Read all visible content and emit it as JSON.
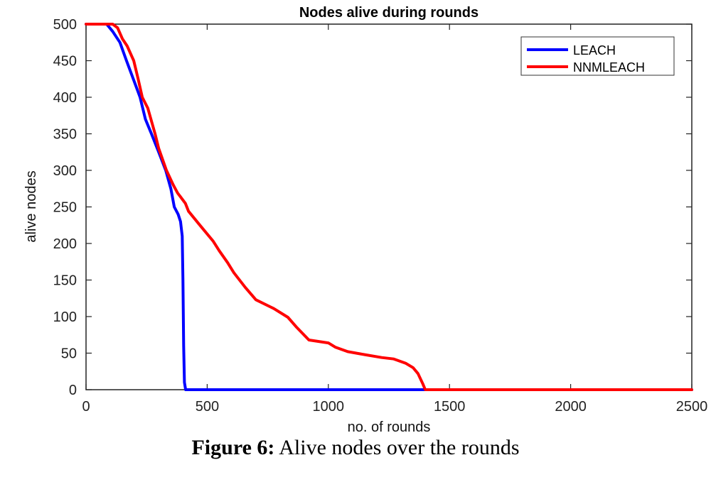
{
  "chart_data": {
    "type": "line",
    "title": "Nodes alive during rounds",
    "xlabel": "no. of rounds",
    "ylabel": "alive nodes",
    "xlim": [
      0,
      2500
    ],
    "ylim": [
      0,
      500
    ],
    "xticks": [
      0,
      500,
      1000,
      1500,
      2000,
      2500
    ],
    "yticks": [
      0,
      50,
      100,
      150,
      200,
      250,
      300,
      350,
      400,
      450,
      500
    ],
    "grid": false,
    "legend_position": "upper right",
    "series": [
      {
        "name": "LEACH",
        "color": "#0000ff",
        "x": [
          0,
          85,
          110,
          140,
          167,
          195,
          223,
          245,
          270,
          300,
          329,
          350,
          364,
          380,
          390,
          397,
          400,
          403,
          406,
          411,
          2500
        ],
        "y": [
          500,
          500,
          490,
          475,
          450,
          425,
          400,
          370,
          350,
          325,
          300,
          275,
          250,
          240,
          230,
          210,
          150,
          60,
          10,
          0,
          0
        ]
      },
      {
        "name": "NNMLEACH",
        "color": "#ff0000",
        "x": [
          0,
          110,
          130,
          150,
          170,
          197,
          215,
          232,
          255,
          285,
          300,
          332,
          360,
          378,
          410,
          423,
          470,
          525,
          550,
          584,
          610,
          657,
          701,
          775,
          833,
          870,
          920,
          1000,
          1030,
          1080,
          1150,
          1220,
          1270,
          1320,
          1350,
          1370,
          1390,
          1400,
          2500
        ],
        "y": [
          500,
          500,
          495,
          480,
          470,
          450,
          425,
          400,
          385,
          350,
          330,
          300,
          280,
          269,
          255,
          244,
          225,
          203,
          190,
          174,
          160,
          140,
          123,
          111,
          99,
          85,
          68,
          64,
          58,
          52,
          48,
          44,
          42,
          36,
          30,
          22,
          8,
          0,
          0
        ]
      }
    ]
  },
  "caption": {
    "label": "Figure 6:",
    "text": " Alive nodes over the rounds"
  }
}
